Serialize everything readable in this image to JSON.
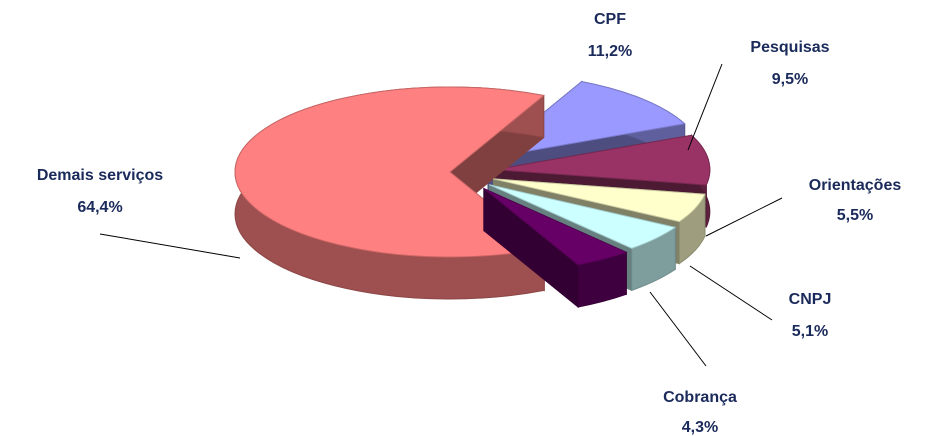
{
  "chart_data": {
    "type": "pie",
    "categories": [
      "Demais serviços",
      "CPF",
      "Pesquisas",
      "Orientações",
      "CNPJ",
      "Cobrança"
    ],
    "values": [
      64.4,
      11.2,
      9.5,
      5.5,
      5.1,
      4.3
    ],
    "value_labels": [
      "64,4%",
      "11,2%",
      "9,5%",
      "5,5%",
      "5,1%",
      "4,3%"
    ],
    "colors": [
      "#ff8080",
      "#9999ff",
      "#993366",
      "#ffffcc",
      "#ccffff",
      "#660066"
    ]
  }
}
